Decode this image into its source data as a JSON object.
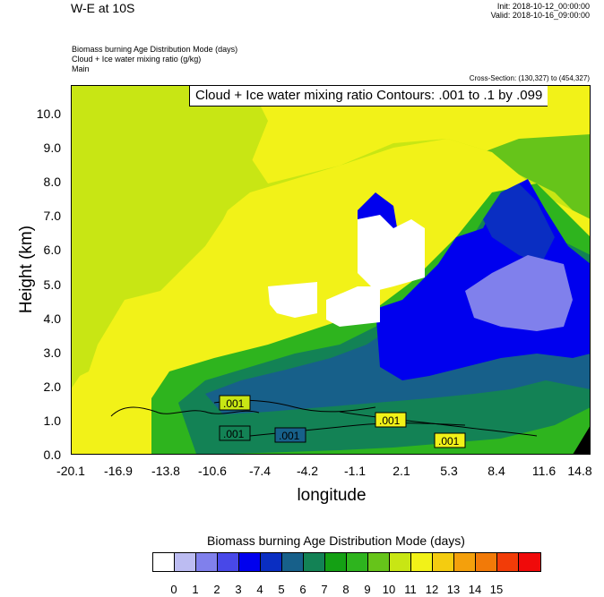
{
  "header": {
    "title": "W-E at 10S",
    "init": "Init: 2018-10-12_00:00:00",
    "valid": "Valid: 2018-10-16_09:00:00",
    "variables": [
      "Biomass burning Age Distribution Mode   (days)",
      "Cloud + Ice water mixing ratio   (g/kg)",
      "Main"
    ],
    "cross_section": "Cross-Section: (130,327) to (454,327)"
  },
  "contour_info": "Cloud + Ice water mixing ratio Contours: .001 to .1 by .099",
  "contour_labels": [
    ".001",
    ".001",
    ".001",
    ".001",
    ".001"
  ],
  "colorbar": {
    "title": "Biomass burning Age Distribution Mode  (days)",
    "labels": [
      "0",
      "1",
      "2",
      "3",
      "4",
      "5",
      "6",
      "7",
      "8",
      "9",
      "10",
      "11",
      "12",
      "13",
      "14",
      "15"
    ],
    "colors": [
      "#ffffff",
      "#bcbcf2",
      "#8080ec",
      "#4848e8",
      "#0000ee",
      "#0a2ec2",
      "#17608a",
      "#138255",
      "#14a014",
      "#2eb41e",
      "#66c41a",
      "#c8e614",
      "#f2f218",
      "#f4cc10",
      "#f4a00c",
      "#f27a08",
      "#f23c08",
      "#f00a0a"
    ]
  },
  "chart_data": {
    "type": "heatmap",
    "title": "W-E at 10S",
    "xlabel": "longitude",
    "ylabel": "Height (km)",
    "x_ticks": [
      "-20.1",
      "-16.9",
      "-13.8",
      "-10.6",
      "-7.4",
      "-4.2",
      "-1.1",
      "2.1",
      "5.3",
      "8.4",
      "11.6",
      "14.8"
    ],
    "y_ticks": [
      "0.0",
      "1.0",
      "2.0",
      "3.0",
      "4.0",
      "5.0",
      "6.0",
      "7.0",
      "8.0",
      "9.0",
      "10.0"
    ],
    "xlim": [
      -20.1,
      14.8
    ],
    "ylim": [
      0,
      10.8
    ],
    "regions": [
      {
        "level": 11,
        "description": "upper-left and top band"
      },
      {
        "level": 12,
        "description": "mid-troposphere yellow band"
      },
      {
        "level": 10,
        "description": "upper-right green"
      },
      {
        "level": 7,
        "description": "lower-left teal"
      },
      {
        "level": 6,
        "description": "mid-level dark teal"
      },
      {
        "level": 4,
        "description": "upper-right blue plume"
      },
      {
        "level": 2,
        "description": "right lavender core"
      },
      {
        "level": 0,
        "description": "white cloud patches"
      }
    ]
  }
}
